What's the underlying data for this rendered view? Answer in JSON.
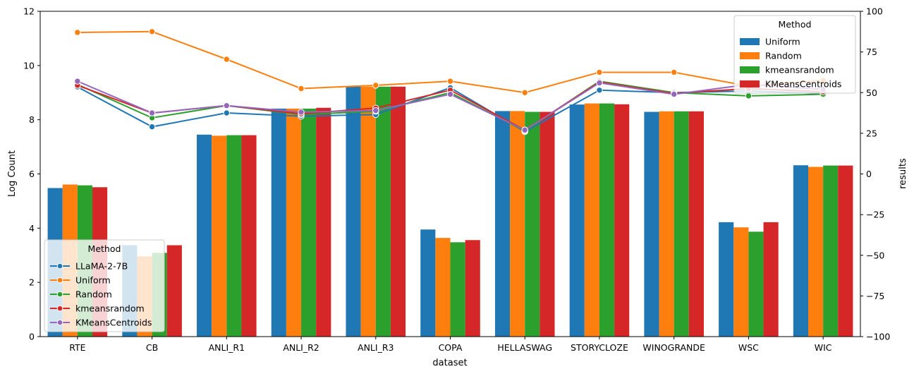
{
  "chart_data": {
    "type": "bar",
    "xlabel": "dataset",
    "ylabel": "Log Count",
    "ylabel_right": "results",
    "ylim": [
      0,
      12
    ],
    "ylim_right": [
      -100,
      100
    ],
    "yticks": [
      0,
      2,
      4,
      6,
      8,
      10,
      12
    ],
    "yticks_right": [
      -100,
      -75,
      -50,
      -25,
      0,
      25,
      50,
      75,
      100
    ],
    "categories": [
      "RTE",
      "CB",
      "ANLI_R1",
      "ANLI_R2",
      "ANLI_R3",
      "COPA",
      "HELLASWAG",
      "STORYCLOZE",
      "WINOGRANDE",
      "WSC",
      "WIC"
    ],
    "bar_legend_title": "Method",
    "bar_legend_position": "top-right",
    "bar_series": [
      {
        "name": "Uniform",
        "color": "#1f77b4",
        "values": [
          5.48,
          3.37,
          7.45,
          8.41,
          9.22,
          3.95,
          8.32,
          8.56,
          8.29,
          4.22,
          6.32
        ]
      },
      {
        "name": "Random",
        "color": "#ff7f0e",
        "values": [
          5.61,
          2.96,
          7.41,
          8.41,
          9.22,
          3.64,
          8.32,
          8.6,
          8.31,
          4.03,
          6.26
        ]
      },
      {
        "name": "kmeansrandom",
        "color": "#2ca02c",
        "values": [
          5.58,
          3.09,
          7.43,
          8.41,
          9.22,
          3.48,
          8.29,
          8.6,
          8.31,
          3.87,
          6.31
        ]
      },
      {
        "name": "KMeansCentroids",
        "color": "#d62728",
        "values": [
          5.51,
          3.37,
          7.43,
          8.44,
          9.22,
          3.56,
          8.29,
          8.57,
          8.31,
          4.22,
          6.31
        ]
      }
    ],
    "line_legend_title": "Method",
    "line_legend_position": "lower-left",
    "line_series": [
      {
        "name": "LLaMA-2-7B",
        "color": "#1f77b4",
        "values": [
          53.5,
          29.0,
          37.5,
          35.5,
          36.5,
          53.0,
          26.0,
          51.5,
          50.0,
          51.0,
          49.5
        ]
      },
      {
        "name": "Uniform",
        "color": "#ff7f0e",
        "values": [
          87.0,
          87.5,
          70.5,
          52.5,
          54.5,
          57.0,
          50.0,
          62.5,
          62.5,
          54.0,
          57.5
        ]
      },
      {
        "name": "Random",
        "color": "#2ca02c",
        "values": [
          55.0,
          34.5,
          42.0,
          36.5,
          38.5,
          50.0,
          26.5,
          57.0,
          50.0,
          48.0,
          49.0
        ]
      },
      {
        "name": "kmeansrandom",
        "color": "#d62728",
        "values": [
          54.5,
          37.5,
          42.0,
          37.0,
          40.5,
          51.5,
          27.0,
          56.5,
          49.5,
          52.5,
          50.5
        ]
      },
      {
        "name": "KMeansCentroids",
        "color": "#9467bd",
        "values": [
          57.0,
          37.5,
          42.0,
          38.0,
          39.0,
          49.0,
          27.0,
          56.0,
          49.0,
          55.0,
          52.0
        ]
      }
    ]
  }
}
